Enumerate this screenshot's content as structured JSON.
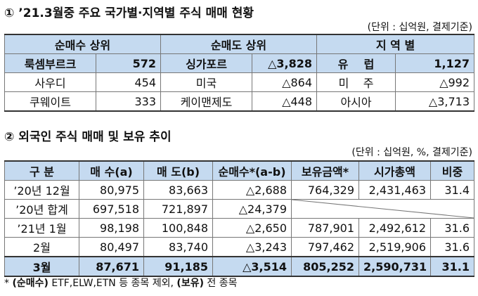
{
  "section1": {
    "title": "① ’21.3월중 주요 국가별·지역별 주식 매매 현황",
    "unit": "(단위 : 십억원, 결제기준)",
    "headers": [
      "순매수 상위",
      "순매도 상위",
      "지 역 별"
    ],
    "rows": [
      [
        "룩셈부르크",
        "572",
        "싱가포르",
        "△3,828",
        "유    럽",
        "1,127"
      ],
      [
        "사우디",
        "454",
        "미국",
        "△864",
        "미    주",
        "△992"
      ],
      [
        "쿠웨이트",
        "333",
        "케이맨제도",
        "△448",
        "아시아",
        "△3,713"
      ]
    ]
  },
  "section2": {
    "title": "② 외국인 주식 매매 및 보유 추이",
    "unit": "(단위 : 십억원, %, 결제기준)",
    "headers": [
      "구 분",
      "매 수(a)",
      "매 도(b)",
      "순매수*(a-b)",
      "보유금액*",
      "시가총액",
      "비중"
    ],
    "rows": [
      [
        "’20년 12월",
        "80,975",
        "83,663",
        "△2,688",
        "764,329",
        "2,431,463",
        "31.4"
      ],
      [
        "’20년 합계",
        "697,518",
        "721,897",
        "△24,379",
        "",
        "",
        ""
      ],
      [
        "’21년 1월",
        "98,198",
        "100,848",
        "△2,650",
        "787,901",
        "2,492,612",
        "31.6"
      ],
      [
        "2월",
        "80,497",
        "83,740",
        "△3,243",
        "797,462",
        "2,519,906",
        "31.6"
      ],
      [
        "3월",
        "87,671",
        "91,185",
        "△3,514",
        "805,252",
        "2,590,731",
        "31.1"
      ]
    ]
  },
  "footnote": {
    "star": "*",
    "bold1": "(순매수)",
    "text1": " ETF,ELW,ETN 등 종목 제외, ",
    "bold2": "(보유)",
    "text2": " 전 종목"
  }
}
